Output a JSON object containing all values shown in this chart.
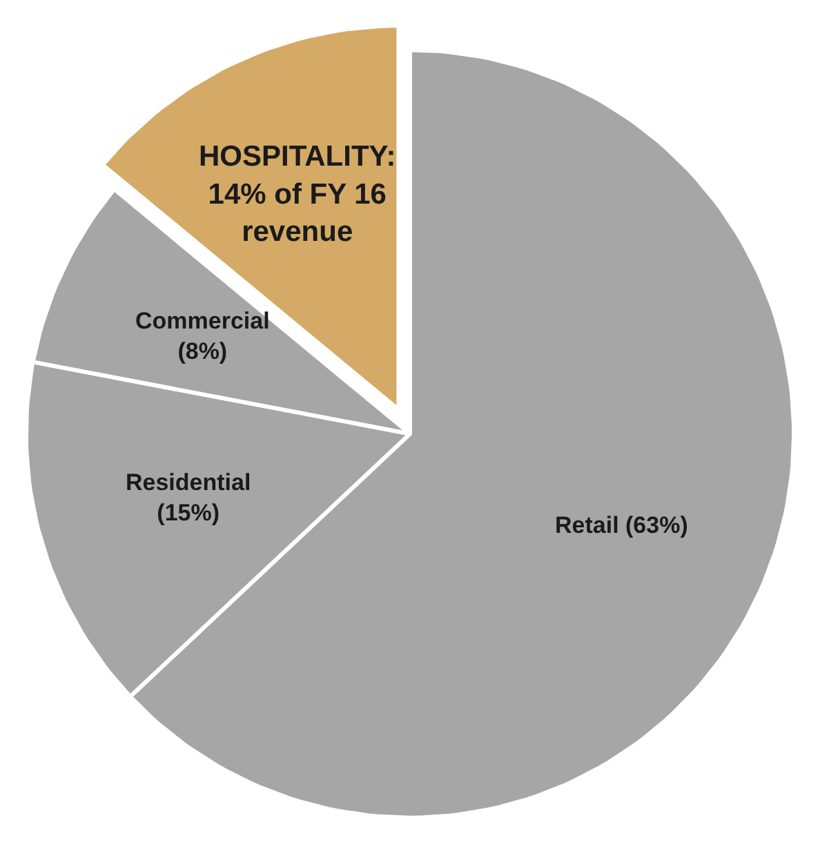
{
  "chart_data": {
    "type": "pie",
    "categories": [
      "Retail (63%)",
      "Residential\n(15%)",
      "Commercial\n(8%)",
      "HOSPITALITY:\n14% of FY 16\nrevenue"
    ],
    "values": [
      63,
      15,
      8,
      14
    ],
    "colors": [
      "#a6a6a6",
      "#a6a6a6",
      "#a6a6a6",
      "#d4aa66"
    ],
    "legend": false
  }
}
